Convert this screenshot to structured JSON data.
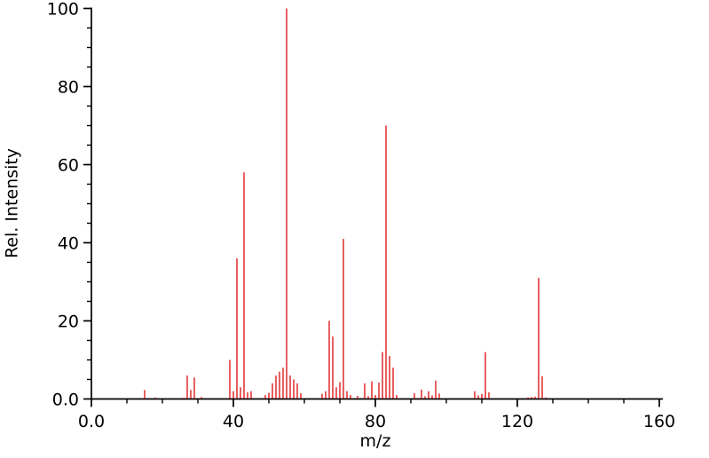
{
  "chart_data": {
    "type": "bar",
    "subtype": "mass-spectrum-stick-plot",
    "title": "",
    "xlabel": "m/z",
    "ylabel": "Rel. Intensity",
    "xlim": [
      0,
      160
    ],
    "ylim": [
      0,
      100
    ],
    "grid": false,
    "legend_position": "none",
    "background_color": "#ffffff",
    "axis_color": "#000000",
    "bar_color": "#df1d1d",
    "x_major_ticks": [
      0,
      40,
      80,
      120,
      160
    ],
    "x_major_tick_labels": [
      "0.0",
      "40",
      "80",
      "120",
      "160"
    ],
    "x_minor_tick_step": 10,
    "y_major_ticks": [
      0,
      20,
      40,
      60,
      80,
      100
    ],
    "y_major_tick_labels": [
      "0.0",
      "20",
      "40",
      "60",
      "80",
      "100"
    ],
    "y_minor_tick_step": 5,
    "series": [
      {
        "name": "relative-intensity",
        "x": [
          15,
          18,
          26,
          27,
          28,
          29,
          31,
          39,
          40,
          41,
          42,
          43,
          44,
          45,
          49,
          50,
          51,
          52,
          53,
          54,
          55,
          56,
          57,
          58,
          59,
          65,
          66,
          67,
          68,
          69,
          70,
          71,
          72,
          73,
          75,
          77,
          78,
          79,
          80,
          81,
          82,
          83,
          84,
          85,
          86,
          91,
          93,
          94,
          95,
          96,
          97,
          98,
          108,
          109,
          110,
          111,
          112,
          123,
          124,
          125,
          126,
          127,
          128
        ],
        "y": [
          2.3,
          0.4,
          0.3,
          6,
          2.3,
          5.5,
          0.5,
          10,
          2,
          36,
          3,
          58,
          1.7,
          2,
          1,
          1.6,
          4,
          6,
          7,
          8,
          100,
          6,
          5,
          4,
          1.5,
          1.3,
          2,
          20,
          16,
          3,
          4.3,
          41,
          2,
          1,
          0.8,
          4,
          0.7,
          4.5,
          1,
          4.2,
          12,
          70,
          11,
          8,
          1,
          1.5,
          2.4,
          0.7,
          2,
          0.9,
          4.7,
          1.4,
          2,
          0.9,
          1.3,
          12,
          1.7,
          0.4,
          0.5,
          0.6,
          31,
          5.8,
          0.4
        ]
      }
    ]
  }
}
